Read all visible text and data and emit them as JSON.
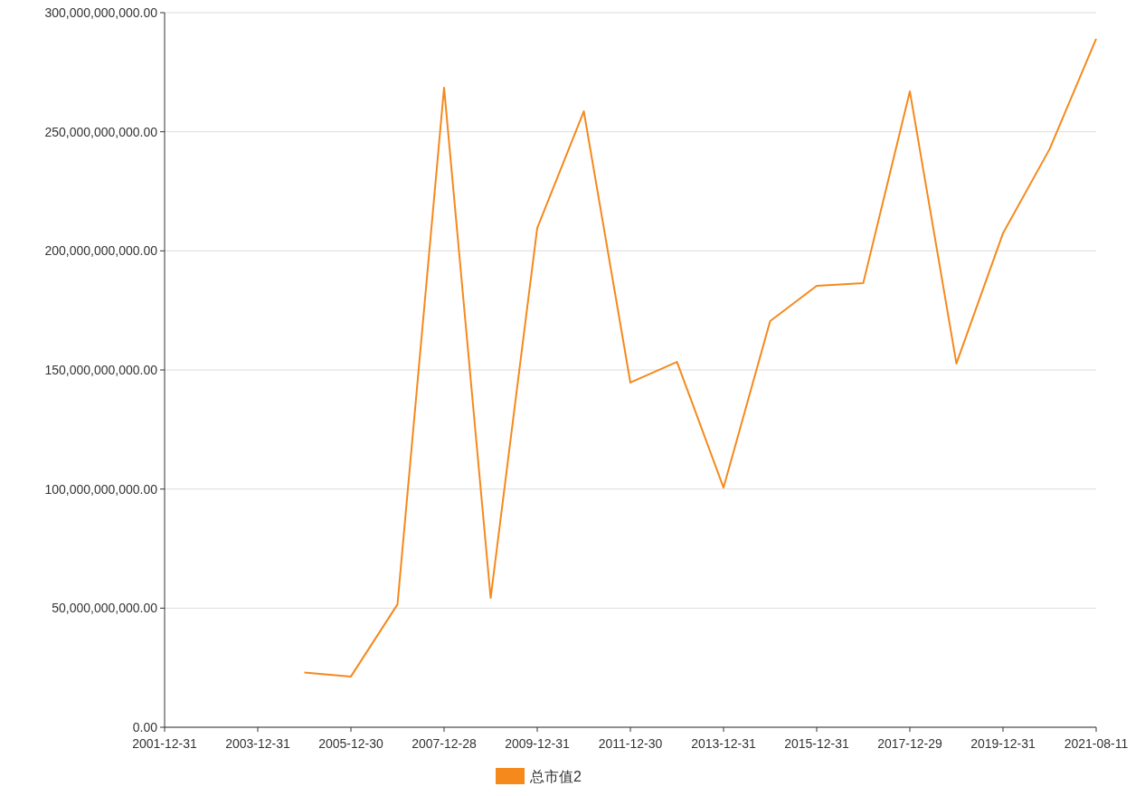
{
  "chart_data": {
    "type": "line",
    "categories": [
      "2001-12-31",
      null,
      "2003-12-31",
      null,
      "2005-12-30",
      null,
      "2007-12-28",
      null,
      "2009-12-31",
      null,
      "2011-12-30",
      null,
      "2013-12-31",
      null,
      "2015-12-31",
      null,
      "2017-12-29",
      null,
      "2019-12-31",
      null,
      "2021-08-11"
    ],
    "series": [
      {
        "name": "总市值2",
        "color": "#f5891c",
        "values": [
          null,
          null,
          null,
          23000000000,
          21300000000,
          51600000000,
          268500000000,
          54300000000,
          209600000000,
          258600000000,
          144700000000,
          153400000000,
          100600000000,
          170500000000,
          185300000000,
          186500000000,
          267000000000,
          152700000000,
          207400000000,
          242700000000,
          289000000000
        ]
      }
    ],
    "ylim": [
      0,
      300000000000
    ],
    "yticks": [
      {
        "value": 0,
        "label": "0.00"
      },
      {
        "value": 50000000000,
        "label": "50,000,000,000.00"
      },
      {
        "value": 100000000000,
        "label": "100,000,000,000.00"
      },
      {
        "value": 150000000000,
        "label": "150,000,000,000.00"
      },
      {
        "value": 200000000000,
        "label": "200,000,000,000.00"
      },
      {
        "value": 250000000000,
        "label": "250,000,000,000.00"
      },
      {
        "value": 300000000000,
        "label": "300,000,000,000.00"
      }
    ],
    "grid": "y",
    "legend": "bottom"
  }
}
